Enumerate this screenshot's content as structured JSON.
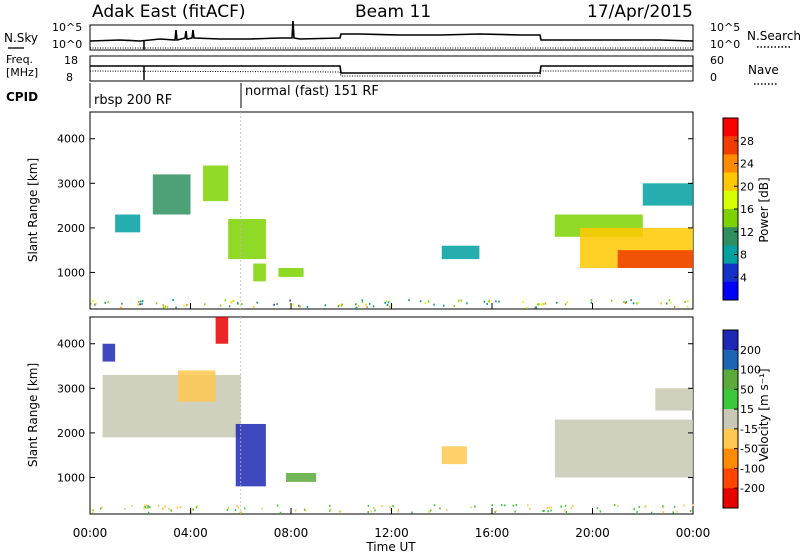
{
  "header": {
    "station": "Adak East (fitACF)",
    "beam": "Beam 11",
    "date": "17/Apr/2015"
  },
  "nsky_panel": {
    "left_label": "N.Sky",
    "right_label": "N.Search",
    "left_ticks": [
      "10^5",
      "10^0"
    ],
    "right_ticks": [
      "10^5",
      "10^0"
    ]
  },
  "freq_panel": {
    "left_label_1": "Freq.",
    "left_label_2": "[MHz]",
    "right_label": "Nave",
    "left_ticks": [
      "18",
      "8"
    ],
    "right_ticks": [
      "60",
      "0"
    ]
  },
  "cpid": {
    "label": "CPID",
    "segments": [
      {
        "text": "rbsp 200 RF",
        "start_hour": 0
      },
      {
        "text": "normal (fast) 151 RF",
        "start_hour": 6
      }
    ]
  },
  "power_panel": {
    "ylabel": "Slant Range [km]",
    "cbar_label": "Power [dB]",
    "cbar_ticks": [
      "28",
      "24",
      "20",
      "16",
      "12",
      "8",
      "4"
    ],
    "cbar_colors": [
      "#ff0000",
      "#f03c00",
      "#ff8c00",
      "#ffc800",
      "#d7ff00",
      "#7dd200",
      "#2f8f5f",
      "#00a0a0",
      "#1432c8",
      "#0000ff"
    ]
  },
  "velocity_panel": {
    "ylabel": "Slant Range [km]",
    "cbar_label": "Velocity [m s⁻¹]",
    "cbar_ticks": [
      "200",
      "100",
      "50",
      "15",
      "-15",
      "-50",
      "-100",
      "-200"
    ],
    "cbar_colors": [
      "#1e28b4",
      "#1e64b4",
      "#5aaa3c",
      "#3cc83c",
      "#c8c8b4",
      "#ffc850",
      "#ff8c00",
      "#ff4600",
      "#e60000"
    ]
  },
  "x_axis": {
    "label": "Time UT",
    "ticks": [
      "00:00",
      "04:00",
      "08:00",
      "12:00",
      "16:00",
      "20:00",
      "00:00"
    ]
  },
  "colors": {
    "frame": "#000000",
    "scatter_gray": "#c8c8b4"
  },
  "chart_data": [
    {
      "type": "heatmap",
      "title": "Power [dB]",
      "xlabel": "Time UT",
      "ylabel": "Slant Range [km]",
      "xlim": [
        0,
        24
      ],
      "ylim": [
        180,
        4600
      ],
      "clim": [
        0,
        30
      ],
      "regions": [
        {
          "t": [
            1.0,
            2.0
          ],
          "r": [
            1900,
            2300
          ],
          "value": 6
        },
        {
          "t": [
            2.5,
            4.0
          ],
          "r": [
            2300,
            3200
          ],
          "value": 9
        },
        {
          "t": [
            4.5,
            5.5
          ],
          "r": [
            2600,
            3400
          ],
          "value": 12
        },
        {
          "t": [
            5.5,
            7.0
          ],
          "r": [
            1300,
            2200
          ],
          "value": 14
        },
        {
          "t": [
            6.5,
            7.0
          ],
          "r": [
            800,
            1200
          ],
          "value": 13
        },
        {
          "t": [
            7.5,
            8.5
          ],
          "r": [
            900,
            1100
          ],
          "value": 15
        },
        {
          "t": [
            14.0,
            15.5
          ],
          "r": [
            1300,
            1600
          ],
          "value": 6
        },
        {
          "t": [
            18.5,
            22.0
          ],
          "r": [
            1800,
            2300
          ],
          "value": 12
        },
        {
          "t": [
            19.5,
            24.0
          ],
          "r": [
            1100,
            2000
          ],
          "value": 20
        },
        {
          "t": [
            21.0,
            24.0
          ],
          "r": [
            1100,
            1500
          ],
          "value": 28
        },
        {
          "t": [
            22.0,
            24.0
          ],
          "r": [
            2500,
            3000
          ],
          "value": 7
        }
      ]
    },
    {
      "type": "heatmap",
      "title": "Velocity [m s⁻¹]",
      "xlabel": "Time UT",
      "ylabel": "Slant Range [km]",
      "xlim": [
        0,
        24
      ],
      "ylim": [
        180,
        4600
      ],
      "clim": [
        -200,
        200
      ],
      "regions": [
        {
          "t": [
            0.5,
            1.0
          ],
          "r": [
            3600,
            4000
          ],
          "value": 200
        },
        {
          "t": [
            0.5,
            6.0
          ],
          "r": [
            1900,
            3300
          ],
          "value": 0
        },
        {
          "t": [
            3.5,
            5.0
          ],
          "r": [
            2700,
            3400
          ],
          "value": -60
        },
        {
          "t": [
            5.0,
            5.5
          ],
          "r": [
            4000,
            4600
          ],
          "value": -200
        },
        {
          "t": [
            5.8,
            7.0
          ],
          "r": [
            800,
            2200
          ],
          "value": 200
        },
        {
          "t": [
            7.8,
            9.0
          ],
          "r": [
            900,
            1100
          ],
          "value": 80
        },
        {
          "t": [
            14.0,
            15.0
          ],
          "r": [
            1300,
            1700
          ],
          "value": -60
        },
        {
          "t": [
            18.5,
            24.0
          ],
          "r": [
            1000,
            2300
          ],
          "value": 0
        },
        {
          "t": [
            22.5,
            24.0
          ],
          "r": [
            2500,
            3000
          ],
          "value": 0
        }
      ]
    }
  ]
}
